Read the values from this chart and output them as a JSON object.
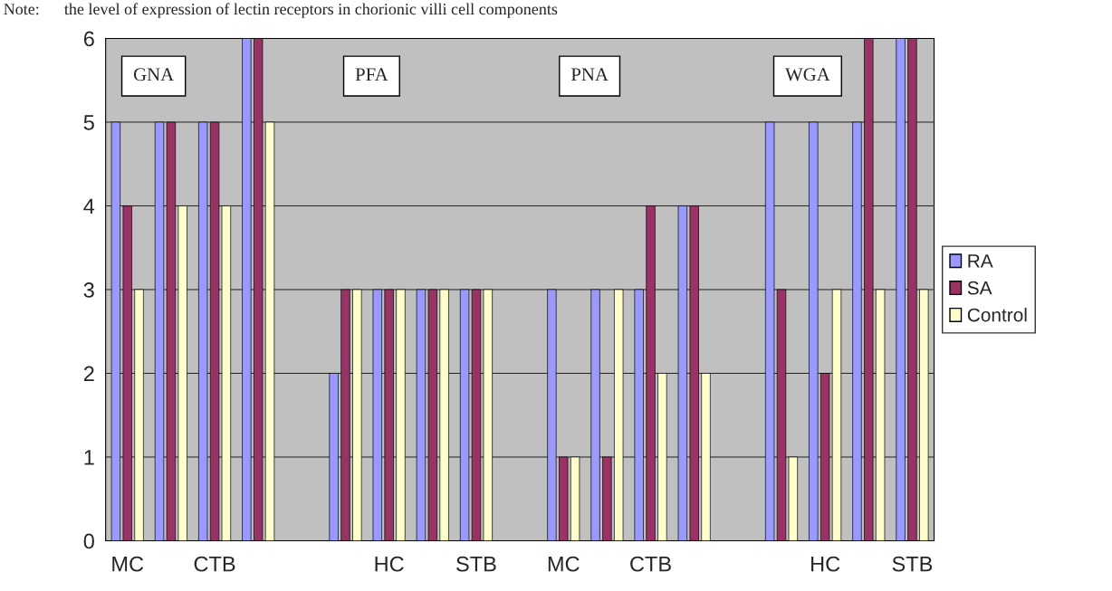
{
  "chart_data": {
    "type": "bar",
    "title": "Note:      the level of expression of lectin receptors in chorionic villi cell components",
    "categories": [
      "MC",
      null,
      "CTB",
      null,
      null,
      null,
      "HC",
      null,
      "STB",
      null,
      "MC",
      null,
      "CTB",
      null,
      null,
      null,
      "HC",
      null,
      "STB"
    ],
    "series": [
      {
        "name": "RA",
        "color": "#9999ff",
        "values": [
          5,
          5,
          5,
          6,
          null,
          2,
          3,
          3,
          3,
          null,
          3,
          3,
          3,
          4,
          null,
          5,
          5,
          5,
          6
        ]
      },
      {
        "name": "SA",
        "color": "#993366",
        "values": [
          4,
          5,
          5,
          6,
          null,
          3,
          3,
          3,
          3,
          null,
          1,
          1,
          4,
          4,
          null,
          3,
          2,
          6,
          6
        ]
      },
      {
        "name": "Control",
        "color": "#ffffcc",
        "values": [
          3,
          4,
          4,
          5,
          null,
          3,
          3,
          3,
          3,
          null,
          1,
          3,
          2,
          2,
          null,
          1,
          3,
          3,
          3
        ]
      }
    ],
    "annotations": [
      "GNA",
      "PFA",
      "PNA",
      "WGA"
    ],
    "ylim": [
      0,
      6
    ],
    "yticks": [
      0,
      1,
      2,
      3,
      4,
      5,
      6
    ],
    "grid": "y",
    "legend": "right"
  }
}
